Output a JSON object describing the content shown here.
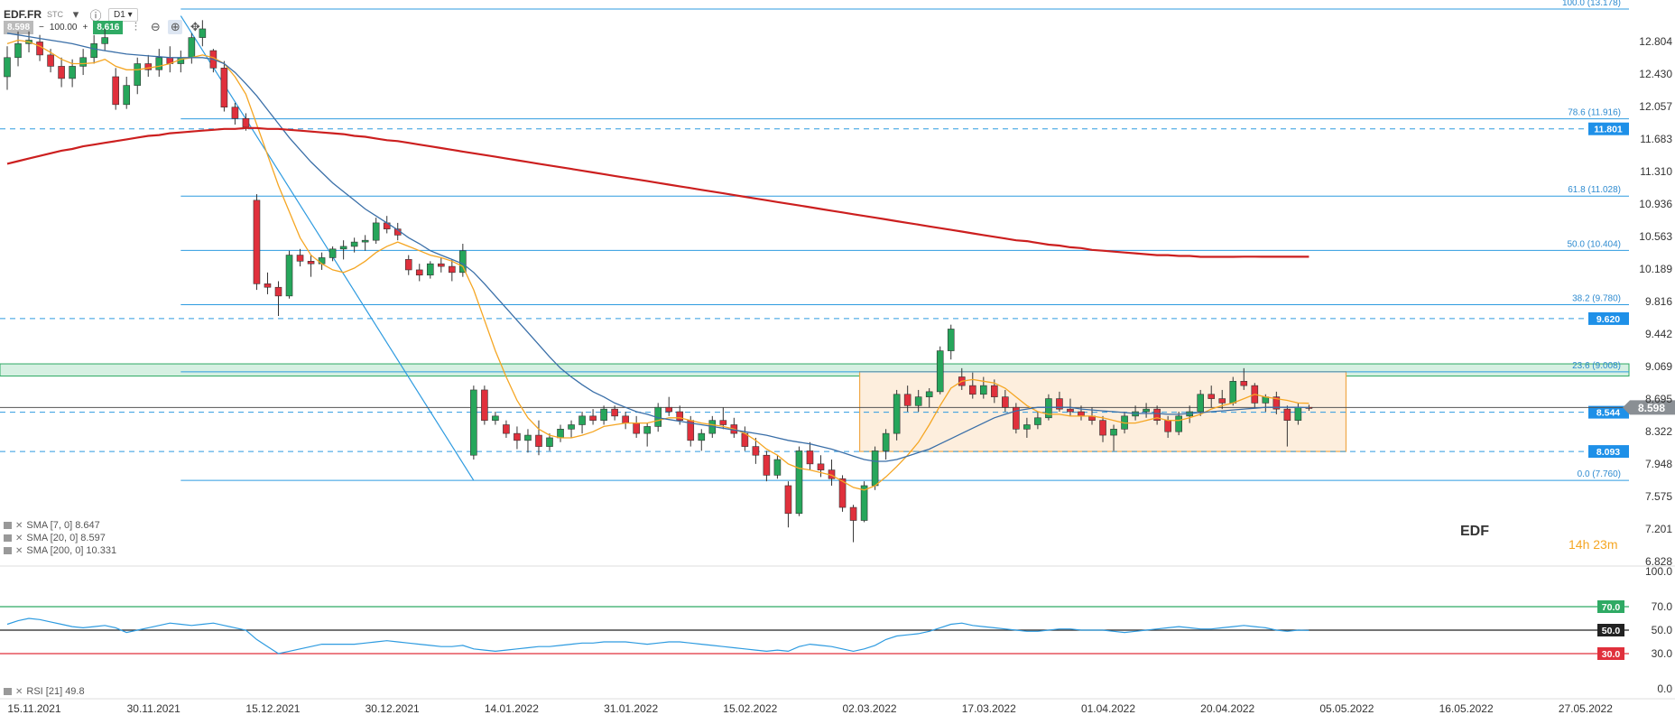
{
  "toolbar": {
    "symbol": "EDF.FR",
    "type": "STC",
    "bid": "8.598",
    "volume": "100.00",
    "ask": "8.616",
    "timeframe": "D1",
    "minus": "−",
    "plus": "+"
  },
  "instrument_name": "EDF",
  "timer": "14h 23m",
  "legend": [
    {
      "text": "SMA [7, 0] 8.647",
      "color": "#f5a623"
    },
    {
      "text": "SMA [20, 0] 8.597",
      "color": "#3a6fa8"
    },
    {
      "text": "SMA [200, 0] 10.331",
      "color": "#cc1f1f"
    }
  ],
  "rsi_legend": "RSI [21] 49.8",
  "chart_data": {
    "type": "candlestick",
    "ylim": [
      6.828,
      13.178
    ],
    "y_ticks": [
      "12.804",
      "12.430",
      "12.057",
      "11.683",
      "11.310",
      "10.936",
      "10.563",
      "10.189",
      "9.816",
      "9.442",
      "9.069",
      "8.695",
      "8.322",
      "7.948",
      "7.575",
      "7.201",
      "6.828"
    ],
    "x_labels": [
      "15.11.2021",
      "30.11.2021",
      "15.12.2021",
      "30.12.2021",
      "14.01.2022",
      "31.01.2022",
      "15.02.2022",
      "02.03.2022",
      "17.03.2022",
      "01.04.2022",
      "20.04.2022",
      "05.05.2022",
      "16.05.2022",
      "27.05.2022"
    ],
    "x_label_index": [
      0,
      11,
      22,
      33,
      44,
      55,
      66,
      77,
      88,
      99,
      110,
      121,
      132,
      143
    ],
    "candles": [
      [
        12.4,
        12.75,
        12.25,
        12.62
      ],
      [
        12.62,
        12.92,
        12.52,
        12.78
      ],
      [
        12.78,
        12.92,
        12.68,
        12.82
      ],
      [
        12.8,
        12.88,
        12.58,
        12.65
      ],
      [
        12.65,
        12.72,
        12.45,
        12.52
      ],
      [
        12.52,
        12.62,
        12.28,
        12.38
      ],
      [
        12.38,
        12.6,
        12.28,
        12.52
      ],
      [
        12.52,
        12.72,
        12.42,
        12.62
      ],
      [
        12.62,
        12.88,
        12.55,
        12.78
      ],
      [
        12.78,
        12.95,
        12.7,
        12.85
      ],
      [
        12.4,
        12.5,
        12.02,
        12.08
      ],
      [
        12.08,
        12.4,
        12.03,
        12.3
      ],
      [
        12.3,
        12.62,
        12.2,
        12.55
      ],
      [
        12.55,
        12.65,
        12.4,
        12.48
      ],
      [
        12.48,
        12.72,
        12.4,
        12.62
      ],
      [
        12.62,
        12.75,
        12.45,
        12.55
      ],
      [
        12.55,
        12.7,
        12.45,
        12.62
      ],
      [
        12.62,
        12.9,
        12.55,
        12.85
      ],
      [
        12.85,
        13.05,
        12.75,
        12.95
      ],
      [
        12.7,
        12.72,
        12.45,
        12.5
      ],
      [
        12.5,
        12.58,
        12.0,
        12.05
      ],
      [
        12.05,
        12.1,
        11.85,
        11.92
      ],
      [
        11.92,
        11.98,
        11.78,
        11.82
      ],
      [
        10.98,
        11.05,
        9.95,
        10.02
      ],
      [
        10.02,
        10.15,
        9.9,
        9.98
      ],
      [
        9.98,
        10.05,
        9.65,
        9.88
      ],
      [
        9.88,
        10.4,
        9.85,
        10.35
      ],
      [
        10.35,
        10.42,
        10.22,
        10.28
      ],
      [
        10.28,
        10.35,
        10.1,
        10.25
      ],
      [
        10.25,
        10.38,
        10.18,
        10.32
      ],
      [
        10.32,
        10.45,
        10.28,
        10.42
      ],
      [
        10.42,
        10.52,
        10.3,
        10.45
      ],
      [
        10.45,
        10.55,
        10.38,
        10.5
      ],
      [
        10.5,
        10.58,
        10.4,
        10.52
      ],
      [
        10.52,
        10.78,
        10.48,
        10.72
      ],
      [
        10.72,
        10.8,
        10.6,
        10.65
      ],
      [
        10.65,
        10.72,
        10.52,
        10.58
      ],
      [
        10.3,
        10.35,
        10.12,
        10.18
      ],
      [
        10.18,
        10.25,
        10.05,
        10.12
      ],
      [
        10.12,
        10.28,
        10.08,
        10.25
      ],
      [
        10.25,
        10.32,
        10.15,
        10.22
      ],
      [
        10.22,
        10.3,
        10.05,
        10.15
      ],
      [
        10.15,
        10.48,
        10.1,
        10.4
      ],
      [
        8.05,
        8.85,
        8.0,
        8.8
      ],
      [
        8.8,
        8.85,
        8.4,
        8.45
      ],
      [
        8.45,
        8.55,
        8.4,
        8.5
      ],
      [
        8.4,
        8.45,
        8.25,
        8.3
      ],
      [
        8.3,
        8.38,
        8.12,
        8.22
      ],
      [
        8.22,
        8.35,
        8.08,
        8.28
      ],
      [
        8.28,
        8.45,
        8.05,
        8.15
      ],
      [
        8.15,
        8.3,
        8.1,
        8.25
      ],
      [
        8.25,
        8.4,
        8.2,
        8.35
      ],
      [
        8.35,
        8.45,
        8.25,
        8.4
      ],
      [
        8.4,
        8.55,
        8.3,
        8.5
      ],
      [
        8.5,
        8.58,
        8.4,
        8.45
      ],
      [
        8.45,
        8.62,
        8.4,
        8.58
      ],
      [
        8.58,
        8.62,
        8.45,
        8.5
      ],
      [
        8.5,
        8.55,
        8.35,
        8.42
      ],
      [
        8.42,
        8.5,
        8.25,
        8.3
      ],
      [
        8.3,
        8.42,
        8.15,
        8.38
      ],
      [
        8.38,
        8.65,
        8.32,
        8.6
      ],
      [
        8.6,
        8.72,
        8.5,
        8.55
      ],
      [
        8.55,
        8.62,
        8.4,
        8.45
      ],
      [
        8.45,
        8.5,
        8.15,
        8.22
      ],
      [
        8.22,
        8.35,
        8.1,
        8.3
      ],
      [
        8.3,
        8.5,
        8.25,
        8.45
      ],
      [
        8.45,
        8.6,
        8.35,
        8.4
      ],
      [
        8.4,
        8.48,
        8.25,
        8.3
      ],
      [
        8.3,
        8.38,
        8.1,
        8.15
      ],
      [
        8.15,
        8.25,
        7.95,
        8.05
      ],
      [
        8.05,
        8.1,
        7.75,
        7.82
      ],
      [
        7.82,
        8.05,
        7.78,
        8.0
      ],
      [
        7.7,
        7.75,
        7.22,
        7.38
      ],
      [
        7.38,
        8.15,
        7.35,
        8.1
      ],
      [
        8.1,
        8.2,
        7.88,
        7.95
      ],
      [
        7.95,
        8.05,
        7.8,
        7.88
      ],
      [
        7.88,
        8.0,
        7.7,
        7.78
      ],
      [
        7.78,
        7.82,
        7.4,
        7.45
      ],
      [
        7.45,
        7.48,
        7.05,
        7.3
      ],
      [
        7.3,
        7.75,
        7.28,
        7.7
      ],
      [
        7.7,
        8.15,
        7.65,
        8.1
      ],
      [
        8.1,
        8.35,
        8.0,
        8.3
      ],
      [
        8.3,
        8.8,
        8.22,
        8.75
      ],
      [
        8.75,
        8.85,
        8.55,
        8.62
      ],
      [
        8.62,
        8.8,
        8.55,
        8.72
      ],
      [
        8.72,
        8.82,
        8.6,
        8.78
      ],
      [
        8.78,
        9.3,
        8.75,
        9.25
      ],
      [
        9.25,
        9.55,
        9.15,
        9.5
      ],
      [
        8.95,
        9.05,
        8.8,
        8.85
      ],
      [
        8.85,
        9.0,
        8.7,
        8.75
      ],
      [
        8.75,
        8.95,
        8.7,
        8.85
      ],
      [
        8.85,
        8.92,
        8.65,
        8.72
      ],
      [
        8.72,
        8.8,
        8.55,
        8.6
      ],
      [
        8.6,
        8.65,
        8.3,
        8.35
      ],
      [
        8.35,
        8.48,
        8.25,
        8.4
      ],
      [
        8.4,
        8.55,
        8.35,
        8.48
      ],
      [
        8.48,
        8.75,
        8.45,
        8.7
      ],
      [
        8.7,
        8.78,
        8.55,
        8.58
      ],
      [
        8.58,
        8.7,
        8.5,
        8.55
      ],
      [
        8.55,
        8.62,
        8.45,
        8.5
      ],
      [
        8.5,
        8.6,
        8.4,
        8.45
      ],
      [
        8.45,
        8.5,
        8.2,
        8.28
      ],
      [
        8.28,
        8.4,
        8.1,
        8.35
      ],
      [
        8.35,
        8.55,
        8.3,
        8.5
      ],
      [
        8.5,
        8.62,
        8.45,
        8.55
      ],
      [
        8.55,
        8.65,
        8.48,
        8.58
      ],
      [
        8.58,
        8.62,
        8.4,
        8.45
      ],
      [
        8.45,
        8.5,
        8.25,
        8.32
      ],
      [
        8.32,
        8.55,
        8.28,
        8.5
      ],
      [
        8.5,
        8.62,
        8.42,
        8.55
      ],
      [
        8.55,
        8.8,
        8.5,
        8.75
      ],
      [
        8.75,
        8.85,
        8.6,
        8.7
      ],
      [
        8.7,
        8.8,
        8.58,
        8.65
      ],
      [
        8.65,
        8.95,
        8.62,
        8.9
      ],
      [
        8.9,
        9.05,
        8.8,
        8.85
      ],
      [
        8.85,
        8.88,
        8.6,
        8.65
      ],
      [
        8.65,
        8.75,
        8.55,
        8.72
      ],
      [
        8.72,
        8.78,
        8.52,
        8.58
      ],
      [
        8.58,
        8.62,
        8.15,
        8.45
      ],
      [
        8.45,
        8.65,
        8.4,
        8.6
      ],
      [
        8.6,
        8.63,
        8.56,
        8.598
      ]
    ],
    "candle_bullish_color": "#26a65b",
    "candle_bearish_color": "#e0303c",
    "series": [
      {
        "name": "SMA [7, 0]",
        "color": "#f5a623",
        "values": [
          12.78,
          12.82,
          12.8,
          12.75,
          12.68,
          12.6,
          12.55,
          12.55,
          12.56,
          12.6,
          12.52,
          12.48,
          12.48,
          12.5,
          12.52,
          12.55,
          12.6,
          12.62,
          12.65,
          12.62,
          12.55,
          12.4,
          12.2,
          11.85,
          11.5,
          11.15,
          10.85,
          10.55,
          10.35,
          10.25,
          10.18,
          10.15,
          10.2,
          10.28,
          10.38,
          10.45,
          10.5,
          10.45,
          10.4,
          10.35,
          10.32,
          10.28,
          10.22,
          9.95,
          9.6,
          9.25,
          8.95,
          8.68,
          8.48,
          8.35,
          8.28,
          8.25,
          8.25,
          8.28,
          8.32,
          8.38,
          8.4,
          8.42,
          8.42,
          8.42,
          8.45,
          8.48,
          8.48,
          8.45,
          8.42,
          8.4,
          8.38,
          8.35,
          8.3,
          8.22,
          8.12,
          8.05,
          7.95,
          7.9,
          7.88,
          7.85,
          7.82,
          7.75,
          7.68,
          7.65,
          7.7,
          7.8,
          7.92,
          8.05,
          8.2,
          8.4,
          8.62,
          8.82,
          8.9,
          8.92,
          8.9,
          8.88,
          8.82,
          8.72,
          8.62,
          8.55,
          8.52,
          8.52,
          8.5,
          8.5,
          8.5,
          8.48,
          8.45,
          8.42,
          8.42,
          8.45,
          8.48,
          8.45,
          8.45,
          8.48,
          8.52,
          8.58,
          8.62,
          8.65,
          8.7,
          8.75,
          8.72,
          8.7,
          8.68,
          8.65,
          8.647
        ]
      },
      {
        "name": "SMA [20, 0]",
        "color": "#3a6fa8",
        "values": [
          12.9,
          12.88,
          12.86,
          12.84,
          12.82,
          12.8,
          12.78,
          12.75,
          12.72,
          12.7,
          12.68,
          12.66,
          12.65,
          12.64,
          12.63,
          12.62,
          12.62,
          12.62,
          12.62,
          12.6,
          12.55,
          12.45,
          12.32,
          12.18,
          12.02,
          11.86,
          11.7,
          11.56,
          11.42,
          11.3,
          11.18,
          11.08,
          10.98,
          10.88,
          10.8,
          10.72,
          10.64,
          10.55,
          10.48,
          10.4,
          10.35,
          10.3,
          10.25,
          10.15,
          10.02,
          9.88,
          9.74,
          9.6,
          9.46,
          9.32,
          9.18,
          9.05,
          8.95,
          8.86,
          8.78,
          8.72,
          8.65,
          8.6,
          8.55,
          8.52,
          8.48,
          8.46,
          8.44,
          8.42,
          8.4,
          8.38,
          8.36,
          8.34,
          8.32,
          8.3,
          8.28,
          8.25,
          8.22,
          8.2,
          8.18,
          8.15,
          8.12,
          8.08,
          8.04,
          8.0,
          7.98,
          7.98,
          8.0,
          8.04,
          8.08,
          8.12,
          8.18,
          8.24,
          8.3,
          8.36,
          8.42,
          8.48,
          8.52,
          8.56,
          8.58,
          8.6,
          8.6,
          8.6,
          8.6,
          8.58,
          8.57,
          8.56,
          8.55,
          8.54,
          8.53,
          8.53,
          8.53,
          8.52,
          8.52,
          8.53,
          8.54,
          8.55,
          8.56,
          8.57,
          8.58,
          8.59,
          8.6,
          8.6,
          8.6,
          8.6,
          8.597
        ]
      },
      {
        "name": "SMA [200, 0]",
        "color": "#cc1f1f",
        "values": [
          11.4,
          11.43,
          11.46,
          11.49,
          11.52,
          11.55,
          11.57,
          11.6,
          11.62,
          11.64,
          11.66,
          11.68,
          11.7,
          11.72,
          11.73,
          11.75,
          11.76,
          11.77,
          11.78,
          11.79,
          11.8,
          11.8,
          11.81,
          11.81,
          11.8,
          11.8,
          11.79,
          11.78,
          11.77,
          11.76,
          11.75,
          11.74,
          11.72,
          11.71,
          11.69,
          11.67,
          11.66,
          11.64,
          11.62,
          11.6,
          11.58,
          11.56,
          11.54,
          11.52,
          11.5,
          11.48,
          11.46,
          11.44,
          11.42,
          11.4,
          11.38,
          11.36,
          11.34,
          11.32,
          11.3,
          11.28,
          11.26,
          11.24,
          11.22,
          11.2,
          11.18,
          11.16,
          11.14,
          11.12,
          11.1,
          11.08,
          11.06,
          11.04,
          11.02,
          11.0,
          10.98,
          10.96,
          10.94,
          10.92,
          10.9,
          10.88,
          10.86,
          10.84,
          10.82,
          10.8,
          10.78,
          10.76,
          10.74,
          10.72,
          10.7,
          10.68,
          10.66,
          10.64,
          10.62,
          10.6,
          10.58,
          10.56,
          10.54,
          10.52,
          10.51,
          10.49,
          10.47,
          10.46,
          10.44,
          10.43,
          10.41,
          10.4,
          10.39,
          10.38,
          10.37,
          10.36,
          10.35,
          10.35,
          10.34,
          10.34,
          10.33,
          10.33,
          10.33,
          10.33,
          10.332,
          10.332,
          10.331,
          10.331,
          10.331,
          10.331,
          10.331
        ]
      }
    ],
    "fibonacci": [
      {
        "label": "100.0 (13.178)",
        "value": 13.178
      },
      {
        "label": "78.6 (11.916)",
        "value": 11.916
      },
      {
        "label": "61.8 (11.028)",
        "value": 11.028
      },
      {
        "label": "50.0 (10.404)",
        "value": 10.404
      },
      {
        "label": "38.2 (9.780)",
        "value": 9.78
      },
      {
        "label": "23.6 (9.008)",
        "value": 9.008
      },
      {
        "label": "0.0 (7.760)",
        "value": 7.76
      }
    ],
    "dashed_levels": [
      {
        "label": "11.801",
        "value": 11.801
      },
      {
        "label": "9.620",
        "value": 9.62
      },
      {
        "label": "8.544",
        "value": 8.544
      },
      {
        "label": "8.093",
        "value": 8.093
      }
    ],
    "current_price": {
      "label": "8.598",
      "value": 8.598
    },
    "range_box": {
      "from_index": 79,
      "to_index": 123,
      "low": 8.093,
      "high": 9.01
    },
    "green_zone": {
      "low": 8.96,
      "high": 9.1
    },
    "fib_source_line": {
      "from_index": 16,
      "from_value": 13.1,
      "to_index": 43,
      "to_value": 7.76
    },
    "rsi": {
      "ylim": [
        0,
        100
      ],
      "ticks": [
        "100.0",
        "70.0",
        "50.0",
        "30.0",
        "0.0"
      ],
      "levels": [
        {
          "label": "70.0",
          "value": 70,
          "color": "#2faa64"
        },
        {
          "label": "50.0",
          "value": 50,
          "color": "#222222"
        },
        {
          "label": "30.0",
          "value": 30,
          "color": "#e0303c"
        }
      ],
      "values": [
        55,
        58,
        60,
        59,
        57,
        55,
        53,
        52,
        53,
        54,
        52,
        48,
        50,
        52,
        54,
        56,
        55,
        54,
        55,
        56,
        54,
        52,
        50,
        42,
        36,
        30,
        32,
        34,
        36,
        38,
        38,
        38,
        38,
        39,
        40,
        41,
        40,
        39,
        38,
        37,
        36,
        36,
        37,
        34,
        33,
        32,
        33,
        34,
        35,
        36,
        36,
        37,
        38,
        39,
        39,
        40,
        40,
        40,
        39,
        38,
        39,
        40,
        40,
        39,
        38,
        37,
        36,
        35,
        34,
        33,
        32,
        33,
        32,
        36,
        38,
        37,
        36,
        34,
        32,
        34,
        37,
        42,
        45,
        46,
        47,
        49,
        52,
        55,
        56,
        54,
        53,
        52,
        51,
        50,
        49,
        49,
        50,
        51,
        51,
        50,
        50,
        50,
        49,
        48,
        49,
        50,
        51,
        52,
        53,
        52,
        51,
        51,
        52,
        53,
        54,
        53,
        52,
        50,
        49,
        50,
        49.8
      ]
    }
  }
}
